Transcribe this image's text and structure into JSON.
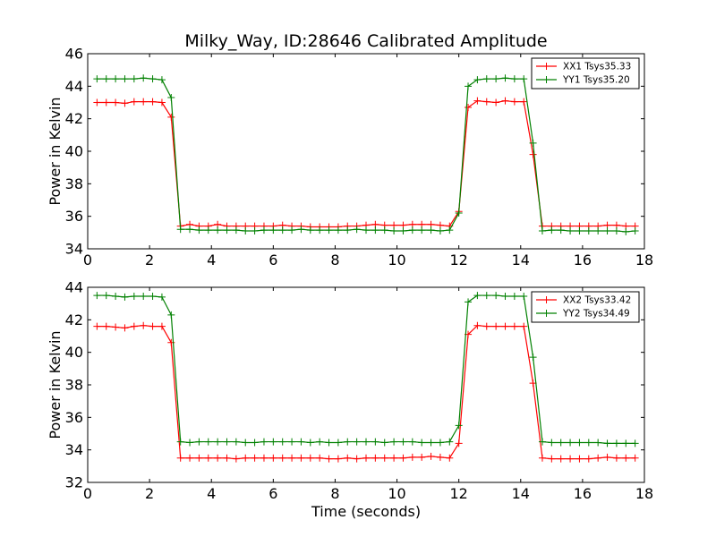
{
  "chart_data": [
    {
      "type": "line",
      "title": "Milky_Way, ID:28646 Calibrated Amplitude",
      "xlabel": "",
      "ylabel": "Power in Kelvin",
      "xlim": [
        0,
        18
      ],
      "ylim": [
        34,
        46
      ],
      "xticks": [
        "0",
        "2",
        "4",
        "6",
        "8",
        "10",
        "12",
        "14",
        "16",
        "18"
      ],
      "yticks": [
        "34",
        "36",
        "38",
        "40",
        "42",
        "44",
        "46"
      ],
      "grid": false,
      "legend_position": "top-right",
      "x": [
        0.3,
        0.6,
        0.9,
        1.2,
        1.5,
        1.8,
        2.1,
        2.4,
        2.7,
        3.0,
        3.3,
        3.6,
        3.9,
        4.2,
        4.5,
        4.8,
        5.1,
        5.4,
        5.7,
        6.0,
        6.3,
        6.6,
        6.9,
        7.2,
        7.5,
        7.8,
        8.1,
        8.4,
        8.7,
        9.0,
        9.3,
        9.6,
        9.9,
        10.2,
        10.5,
        10.8,
        11.1,
        11.4,
        11.7,
        12.0,
        12.3,
        12.6,
        12.9,
        13.2,
        13.5,
        13.8,
        14.1,
        14.4,
        14.7,
        15.0,
        15.3,
        15.6,
        15.9,
        16.2,
        16.5,
        16.8,
        17.1,
        17.4,
        17.7
      ],
      "series": [
        {
          "name": "XX1 Tsys35.33",
          "color": "#ff0000",
          "values": [
            43.0,
            43.0,
            43.0,
            42.95,
            43.05,
            43.05,
            43.05,
            43.0,
            42.1,
            35.4,
            35.5,
            35.4,
            35.4,
            35.5,
            35.4,
            35.4,
            35.4,
            35.4,
            35.4,
            35.4,
            35.45,
            35.4,
            35.4,
            35.35,
            35.35,
            35.35,
            35.35,
            35.4,
            35.4,
            35.45,
            35.5,
            35.45,
            35.45,
            35.45,
            35.5,
            35.5,
            35.5,
            35.45,
            35.4,
            36.3,
            42.7,
            43.1,
            43.05,
            43.0,
            43.1,
            43.05,
            43.05,
            39.8,
            35.4,
            35.4,
            35.4,
            35.4,
            35.4,
            35.4,
            35.4,
            35.45,
            35.45,
            35.4,
            35.4
          ]
        },
        {
          "name": "YY1 Tsys35.20",
          "color": "#008000",
          "values": [
            44.45,
            44.45,
            44.45,
            44.45,
            44.45,
            44.5,
            44.45,
            44.4,
            43.3,
            35.2,
            35.2,
            35.15,
            35.15,
            35.15,
            35.15,
            35.15,
            35.1,
            35.1,
            35.15,
            35.15,
            35.15,
            35.15,
            35.2,
            35.15,
            35.15,
            35.15,
            35.15,
            35.15,
            35.2,
            35.15,
            35.15,
            35.15,
            35.1,
            35.1,
            35.15,
            35.15,
            35.15,
            35.1,
            35.15,
            36.2,
            44.0,
            44.4,
            44.45,
            44.45,
            44.5,
            44.45,
            44.45,
            40.5,
            35.1,
            35.15,
            35.15,
            35.1,
            35.1,
            35.1,
            35.1,
            35.1,
            35.1,
            35.05,
            35.1
          ]
        }
      ]
    },
    {
      "type": "line",
      "title": "",
      "xlabel": "Time (seconds)",
      "ylabel": "Power in Kelvin",
      "xlim": [
        0,
        18
      ],
      "ylim": [
        32,
        44
      ],
      "xticks": [
        "0",
        "2",
        "4",
        "6",
        "8",
        "10",
        "12",
        "14",
        "16",
        "18"
      ],
      "yticks": [
        "32",
        "34",
        "36",
        "38",
        "40",
        "42",
        "44"
      ],
      "grid": false,
      "legend_position": "top-right",
      "x": [
        0.3,
        0.6,
        0.9,
        1.2,
        1.5,
        1.8,
        2.1,
        2.4,
        2.7,
        3.0,
        3.3,
        3.6,
        3.9,
        4.2,
        4.5,
        4.8,
        5.1,
        5.4,
        5.7,
        6.0,
        6.3,
        6.6,
        6.9,
        7.2,
        7.5,
        7.8,
        8.1,
        8.4,
        8.7,
        9.0,
        9.3,
        9.6,
        9.9,
        10.2,
        10.5,
        10.8,
        11.1,
        11.4,
        11.7,
        12.0,
        12.3,
        12.6,
        12.9,
        13.2,
        13.5,
        13.8,
        14.1,
        14.4,
        14.7,
        15.0,
        15.3,
        15.6,
        15.9,
        16.2,
        16.5,
        16.8,
        17.1,
        17.4,
        17.7
      ],
      "series": [
        {
          "name": "XX2 Tsys33.42",
          "color": "#ff0000",
          "values": [
            41.6,
            41.6,
            41.55,
            41.5,
            41.6,
            41.65,
            41.6,
            41.6,
            40.6,
            33.5,
            33.5,
            33.5,
            33.5,
            33.5,
            33.5,
            33.45,
            33.5,
            33.5,
            33.5,
            33.5,
            33.5,
            33.5,
            33.5,
            33.5,
            33.5,
            33.45,
            33.45,
            33.5,
            33.45,
            33.5,
            33.5,
            33.5,
            33.5,
            33.5,
            33.55,
            33.55,
            33.6,
            33.55,
            33.5,
            34.4,
            41.1,
            41.65,
            41.6,
            41.6,
            41.6,
            41.6,
            41.6,
            38.1,
            33.5,
            33.45,
            33.45,
            33.45,
            33.45,
            33.45,
            33.5,
            33.55,
            33.5,
            33.5,
            33.5
          ]
        },
        {
          "name": "YY2 Tsys34.49",
          "color": "#008000",
          "values": [
            43.5,
            43.5,
            43.45,
            43.4,
            43.45,
            43.45,
            43.45,
            43.4,
            42.3,
            34.5,
            34.45,
            34.5,
            34.5,
            34.5,
            34.5,
            34.5,
            34.45,
            34.45,
            34.5,
            34.5,
            34.5,
            34.5,
            34.5,
            34.45,
            34.5,
            34.45,
            34.45,
            34.5,
            34.5,
            34.5,
            34.5,
            34.45,
            34.5,
            34.5,
            34.5,
            34.45,
            34.45,
            34.45,
            34.5,
            35.5,
            43.1,
            43.5,
            43.5,
            43.5,
            43.45,
            43.45,
            43.45,
            39.7,
            34.5,
            34.45,
            34.45,
            34.45,
            34.45,
            34.45,
            34.45,
            34.4,
            34.4,
            34.4,
            34.4
          ]
        }
      ]
    }
  ]
}
